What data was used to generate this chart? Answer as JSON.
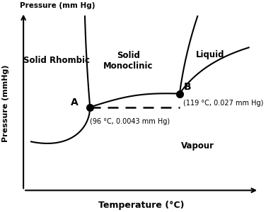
{
  "xlabel": "Temperature (°C)",
  "ylabel": "Pressure (mmHg)",
  "ylabel_top": "Pressure (mm Hg)",
  "point_A_label": "A",
  "point_A_coord_label": "(96 °C, 0.0043 mm Hg)",
  "point_B_label": "B",
  "point_B_coord_label": "(119 °C, 0.027 mm Hg)",
  "region_solid_rhombic": "Solid Rhombic",
  "region_solid_monoclinic": "Solid\nMonoclinic",
  "region_liquid": "Liquid",
  "region_vapour": "Vapour",
  "background_color": "#ffffff",
  "line_color": "#000000",
  "xA": 3.3,
  "yA": 4.8,
  "xB": 6.8,
  "yB": 5.5,
  "xlim": [
    0,
    10
  ],
  "ylim": [
    0,
    10
  ],
  "axis_x_start": 0.7,
  "axis_x_end": 9.9,
  "axis_y_start": 0.5,
  "axis_y_end": 9.7
}
